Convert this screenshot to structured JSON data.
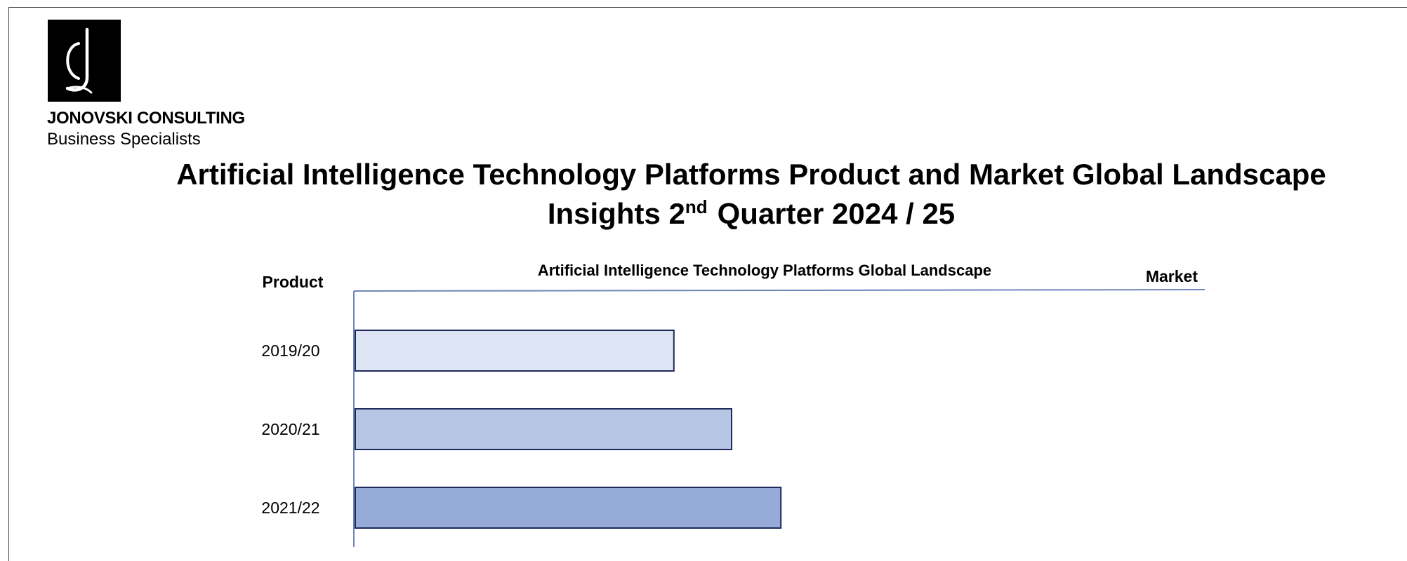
{
  "header": {
    "company_name": "JONOVSKI CONSULTING",
    "tagline": "Business Specialists",
    "logo_glyph": "jc",
    "title_line_1": "Artificial Intelligence Technology Platforms Product and Market Global Landscape",
    "title_line_2_prefix": "Insights 2",
    "title_line_2_sup": "nd",
    "title_line_2_suffix": "Quarter 2024 / 25"
  },
  "colors": {
    "bar_outline": "#1f2a5a",
    "axis": "#6f86b8",
    "bar_fills": [
      "#dde4f4",
      "#b8c6e5",
      "#97abd8"
    ]
  },
  "chart_data": {
    "type": "bar",
    "orientation": "horizontal",
    "title": "Artificial Intelligence Technology Platforms Global Landscape",
    "left_label": "Product",
    "right_label": "Market",
    "categories": [
      "2019/20",
      "2020/21",
      "2021/22"
    ],
    "values": [
      37.5,
      44.3,
      50.1
    ],
    "xlim": [
      0,
      100
    ],
    "grid": false,
    "legend": "none"
  }
}
